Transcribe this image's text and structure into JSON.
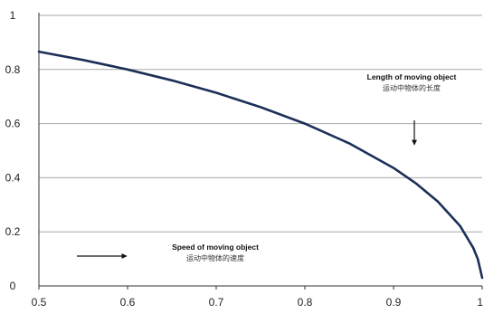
{
  "chart_data": {
    "type": "line",
    "title": "",
    "xlabel": "",
    "ylabel": "",
    "xlim": [
      0.5,
      1
    ],
    "ylim": [
      0,
      1
    ],
    "x_ticks": [
      "0.5",
      "0.6",
      "0.7",
      "0.8",
      "0.9",
      "1"
    ],
    "y_ticks": [
      "0",
      "0.2",
      "0.4",
      "0.6",
      "0.8",
      "1"
    ],
    "grid": "horizontal",
    "series": [
      {
        "color": "#1c2f57",
        "x": [
          0.5,
          0.55,
          0.6,
          0.65,
          0.7,
          0.75,
          0.8,
          0.85,
          0.9,
          0.925,
          0.95,
          0.975,
          0.99,
          0.995,
          1.0
        ],
        "y": [
          0.866,
          0.835,
          0.8,
          0.76,
          0.714,
          0.661,
          0.6,
          0.527,
          0.436,
          0.38,
          0.312,
          0.222,
          0.14,
          0.1,
          0.03
        ]
      }
    ],
    "annotations": [
      {
        "id": "length",
        "label_en": "Length of moving object",
        "label_zh": "运动中物体的长度",
        "arrow": "down",
        "anchor_x": 0.92,
        "anchor_y": 0.5
      },
      {
        "id": "speed",
        "label_en": "Speed of moving object",
        "label_zh": "运动中物体的速度",
        "arrow": "right",
        "anchor_x": 0.6,
        "anchor_y": 0.115
      }
    ]
  }
}
